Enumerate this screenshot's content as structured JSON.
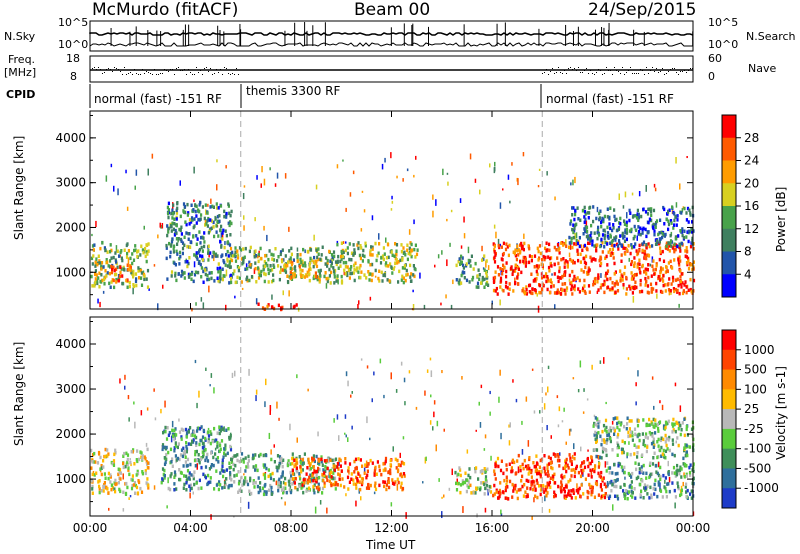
{
  "header": {
    "station": "McMurdo (fitACF)",
    "beam": "Beam 00",
    "date": "24/Sep/2015"
  },
  "side_labels": {
    "nsky": "N.Sky",
    "freq": "Freq.",
    "freq_unit": "[MHz]",
    "cpid": "CPID",
    "nsearch": "N.Search",
    "nave": "Nave"
  },
  "strip_ticks": {
    "noise_left": [
      "10^5",
      "10^0"
    ],
    "noise_right": [
      "10^5",
      "10^0"
    ],
    "freq_left": [
      "18",
      "8"
    ],
    "nave_right": [
      "60",
      "0"
    ]
  },
  "cpid_segments": [
    {
      "label": "normal (fast) -151 RF",
      "start_hour": 0,
      "end_hour": 6
    },
    {
      "label": "themis 3300 RF",
      "start_hour": 6,
      "end_hour": 18
    },
    {
      "label": "normal (fast) -151 RF",
      "start_hour": 18,
      "end_hour": 24
    }
  ],
  "chart_data": [
    {
      "type": "heatmap",
      "title": "",
      "xlabel": "Time UT",
      "ylabel": "Slant Range [km]",
      "x_ticks": [
        "00:00",
        "04:00",
        "08:00",
        "12:00",
        "16:00",
        "20:00",
        "00:00"
      ],
      "x_range_hours": [
        0,
        24
      ],
      "y_ticks": [
        1000,
        2000,
        3000,
        4000
      ],
      "ylim": [
        180,
        4600
      ],
      "colorbar": {
        "label": "Power [dB]",
        "ticks": [
          4,
          8,
          12,
          16,
          20,
          24,
          28
        ],
        "colors": [
          "#0000ff",
          "#2255aa",
          "#3f7f5f",
          "#48a24a",
          "#d8d020",
          "#ff9c00",
          "#ff5a00",
          "#ff0000"
        ]
      },
      "scatter_regions": [
        {
          "x": [
            0.0,
            2.3
          ],
          "y": [
            700,
            1700
          ],
          "level": 0.45
        },
        {
          "x": [
            0.8,
            1.6
          ],
          "y": [
            800,
            1200
          ],
          "level": 0.9
        },
        {
          "x": [
            3.0,
            5.6
          ],
          "y": [
            800,
            2600
          ],
          "level": 0.3
        },
        {
          "x": [
            5.5,
            9.8
          ],
          "y": [
            800,
            1600
          ],
          "level": 0.45
        },
        {
          "x": [
            7.5,
            9.0
          ],
          "y": [
            900,
            1300
          ],
          "level": 0.65
        },
        {
          "x": [
            9.8,
            13.0
          ],
          "y": [
            800,
            1700
          ],
          "level": 0.5
        },
        {
          "x": [
            14.5,
            15.8
          ],
          "y": [
            700,
            1400
          ],
          "level": 0.4
        },
        {
          "x": [
            16.0,
            24.0
          ],
          "y": [
            550,
            1700
          ],
          "level": 0.85
        },
        {
          "x": [
            19.0,
            24.0
          ],
          "y": [
            1600,
            2500
          ],
          "level": 0.25
        },
        {
          "x": [
            6.5,
            8.5
          ],
          "y": [
            200,
            330
          ],
          "level": 0.95
        }
      ],
      "boundaries_hours": [
        6,
        18
      ]
    },
    {
      "type": "heatmap",
      "title": "",
      "xlabel": "Time UT",
      "ylabel": "Slant Range [km]",
      "x_ticks": [
        "00:00",
        "04:00",
        "08:00",
        "12:00",
        "16:00",
        "20:00",
        "00:00"
      ],
      "x_range_hours": [
        0,
        24
      ],
      "y_ticks": [
        1000,
        2000,
        3000,
        4000
      ],
      "ylim": [
        180,
        4600
      ],
      "colorbar": {
        "label": "Velocity [m s-1]",
        "ticks": [
          1000,
          500,
          100,
          25,
          -25,
          -100,
          -500,
          -1000
        ],
        "colors": [
          "#1e3cc8",
          "#2f6f9c",
          "#3f8f5a",
          "#5acc3c",
          "#b8b8b8",
          "#ffbb00",
          "#ff8a00",
          "#ff4400",
          "#ff0000"
        ]
      },
      "scatter_regions": [
        {
          "x": [
            0.0,
            2.3
          ],
          "y": [
            700,
            1700
          ],
          "level": 0.55
        },
        {
          "x": [
            2.8,
            5.6
          ],
          "y": [
            800,
            2200
          ],
          "level": 0.3
        },
        {
          "x": [
            5.5,
            9.8
          ],
          "y": [
            700,
            1600
          ],
          "level": 0.35
        },
        {
          "x": [
            8.0,
            12.5
          ],
          "y": [
            800,
            1500
          ],
          "level": 0.8
        },
        {
          "x": [
            14.5,
            16.0
          ],
          "y": [
            700,
            1300
          ],
          "level": 0.45
        },
        {
          "x": [
            16.0,
            20.5
          ],
          "y": [
            600,
            1600
          ],
          "level": 0.85
        },
        {
          "x": [
            20.5,
            24.0
          ],
          "y": [
            600,
            1400
          ],
          "level": 0.3
        },
        {
          "x": [
            20.0,
            24.0
          ],
          "y": [
            1500,
            2400
          ],
          "level": 0.4
        }
      ],
      "boundaries_hours": [
        6,
        18
      ]
    }
  ]
}
